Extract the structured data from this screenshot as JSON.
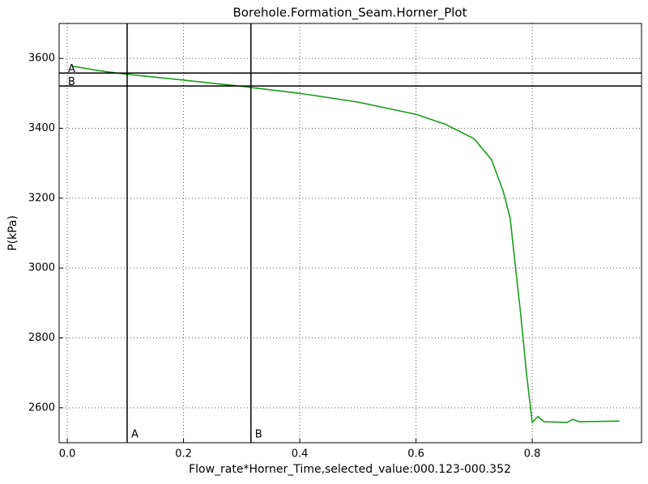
{
  "chart_data": {
    "type": "line",
    "title": "Borehole.Formation_Seam.Horner_Plot",
    "x_label": "Flow_rate*Horner_Time,selected_value:000.123-000.352",
    "y_label": "P(kPa)",
    "x": [
      0.008,
      0.012,
      0.05,
      0.1,
      0.2,
      0.3,
      0.4,
      0.5,
      0.6,
      0.65,
      0.7,
      0.73,
      0.75,
      0.762,
      0.77,
      0.78,
      0.79,
      0.8,
      0.81,
      0.82,
      0.86,
      0.87,
      0.88,
      0.95
    ],
    "series": [
      {
        "name": "P",
        "color": "#1a9e1a",
        "values": [
          3575,
          3577,
          3566,
          3555,
          3538,
          3520,
          3500,
          3475,
          3440,
          3412,
          3370,
          3310,
          3220,
          3143,
          3020,
          2870,
          2700,
          2558,
          2575,
          2560,
          2558,
          2567,
          2560,
          2562
        ]
      }
    ],
    "markers": [
      {
        "label": "A",
        "x": 0.103,
        "y": 3558
      },
      {
        "label": "B",
        "x": 0.316,
        "y": 3521
      }
    ],
    "xlim": [
      -0.014,
      0.988
    ],
    "ylim": [
      2500,
      3700
    ],
    "xticks": [
      {
        "value": 0,
        "label": "0.0"
      },
      0.2,
      0.4,
      0.6,
      0.8
    ],
    "yticks": [
      2600,
      2800,
      3000,
      3200,
      3400,
      3600
    ],
    "grid": true
  }
}
